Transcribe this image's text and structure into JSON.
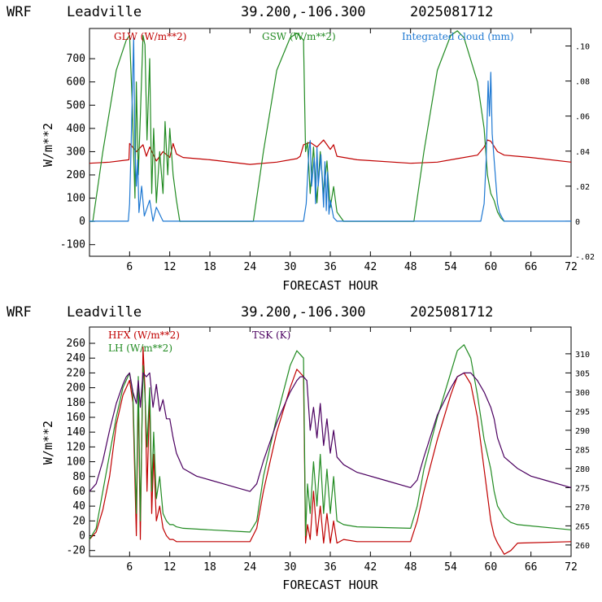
{
  "header": {
    "model": "WRF",
    "location": "Leadville",
    "coords": "39.200,-106.300",
    "init": "2025081712"
  },
  "colors": {
    "red": "#c00000",
    "green": "#228b22",
    "blue": "#1e78d2",
    "purple": "#4b0060"
  },
  "chart_data": [
    {
      "type": "line",
      "xlabel": "FORECAST HOUR",
      "ylabel": "W/m**2",
      "xlim": [
        0,
        72
      ],
      "ylim": [
        -150,
        830
      ],
      "y2lim": [
        -0.02,
        0.11
      ],
      "xticks": [
        "6",
        "12",
        "18",
        "24",
        "30",
        "36",
        "42",
        "48",
        "54",
        "60",
        "66",
        "72"
      ],
      "yticks": [
        "-100",
        "0",
        "100",
        "200",
        "300",
        "400",
        "500",
        "600",
        "700"
      ],
      "y2ticks": [
        "-.02",
        "0",
        ".02",
        ".04",
        ".06",
        ".08",
        ".10"
      ],
      "series": [
        {
          "name": "GLW (W/m**2)",
          "color": "red",
          "axis": "left",
          "x": [
            0,
            3,
            5.9,
            6,
            7,
            8,
            8.5,
            9,
            10,
            11,
            12,
            12.5,
            13,
            14,
            18,
            24,
            28,
            31,
            31.5,
            32,
            33,
            34,
            35,
            36,
            36.5,
            37,
            40,
            48,
            52,
            55,
            58,
            59,
            59.5,
            60,
            61,
            62,
            66,
            72
          ],
          "y": [
            250,
            255,
            265,
            335,
            300,
            330,
            280,
            320,
            260,
            300,
            275,
            335,
            290,
            275,
            265,
            245,
            255,
            270,
            280,
            330,
            340,
            320,
            350,
            310,
            330,
            280,
            265,
            250,
            255,
            270,
            285,
            320,
            350,
            345,
            300,
            285,
            275,
            255
          ]
        },
        {
          "name": "GSW (W/m**2)",
          "color": "green",
          "axis": "left",
          "x": [
            0,
            0.5,
            2,
            4,
            5.5,
            6,
            6.4,
            6.8,
            7,
            7.3,
            7.6,
            8,
            8.3,
            8.6,
            9,
            9.3,
            9.6,
            10,
            10.5,
            11,
            11.3,
            11.7,
            12,
            12.5,
            13,
            13.5,
            24.5,
            26,
            28,
            30,
            31,
            32,
            32.3,
            32.6,
            33,
            33.5,
            34,
            34.5,
            35,
            35.5,
            36,
            36.5,
            37,
            37.5,
            38,
            48.5,
            50,
            52,
            54,
            55,
            56,
            58,
            59,
            59.5,
            60,
            60.5,
            61,
            61.5,
            62
          ],
          "y": [
            0,
            0,
            300,
            650,
            780,
            800,
            500,
            100,
            600,
            200,
            450,
            800,
            760,
            350,
            700,
            120,
            400,
            80,
            300,
            120,
            430,
            200,
            400,
            200,
            90,
            0,
            0,
            300,
            650,
            790,
            810,
            780,
            300,
            340,
            120,
            320,
            80,
            300,
            120,
            260,
            60,
            150,
            40,
            20,
            0,
            0,
            300,
            650,
            800,
            820,
            790,
            600,
            400,
            200,
            120,
            90,
            40,
            15,
            0
          ]
        },
        {
          "name": "Integrated cloud (mm)",
          "color": "blue",
          "axis": "right",
          "x": [
            0,
            5.8,
            6,
            6.2,
            6.6,
            6.8,
            7,
            7.2,
            7.4,
            7.8,
            8.2,
            9,
            9.5,
            10,
            11,
            12,
            32,
            32.4,
            32.8,
            33,
            33.2,
            33.6,
            33.8,
            34,
            34.2,
            34.6,
            35,
            35.2,
            35.4,
            35.6,
            35.8,
            36,
            36.5,
            37,
            58.5,
            59,
            59.3,
            59.6,
            59.8,
            60,
            60.2,
            60.5,
            60.8,
            61,
            61.3,
            61.7,
            62,
            72
          ],
          "y": [
            0,
            0,
            0.01,
            0.04,
            0.105,
            0.04,
            0.02,
            0.035,
            0.005,
            0.02,
            0.003,
            0.012,
            0,
            0.008,
            0,
            0,
            0,
            0.01,
            0.04,
            0.046,
            0.02,
            0.036,
            0.01,
            0.042,
            0.02,
            0.038,
            0.008,
            0.034,
            0.006,
            0.028,
            0.004,
            0.012,
            0.002,
            0,
            0,
            0.01,
            0.035,
            0.08,
            0.06,
            0.085,
            0.05,
            0.035,
            0.02,
            0.01,
            0.005,
            0.002,
            0,
            0
          ]
        }
      ]
    },
    {
      "type": "line",
      "xlabel": "FORECAST HOUR",
      "ylabel": "W/m**2",
      "xlim": [
        0,
        72
      ],
      "ylim": [
        -28,
        282
      ],
      "y2lim": [
        257,
        317
      ],
      "xticks": [
        "6",
        "12",
        "18",
        "24",
        "30",
        "36",
        "42",
        "48",
        "54",
        "60",
        "66",
        "72"
      ],
      "yticks": [
        "-20",
        "0",
        "20",
        "40",
        "60",
        "80",
        "100",
        "120",
        "140",
        "160",
        "180",
        "200",
        "220",
        "240",
        "260"
      ],
      "y2ticks": [
        "260",
        "265",
        "270",
        "275",
        "280",
        "285",
        "290",
        "295",
        "300",
        "305",
        "310"
      ],
      "series": [
        {
          "name": "HFX (W/m**2)",
          "color": "red",
          "axis": "left",
          "x": [
            0,
            1,
            2,
            3,
            4,
            5,
            6,
            6.5,
            7,
            7.3,
            7.6,
            8,
            8.3,
            8.6,
            9,
            9.3,
            9.6,
            10,
            10.5,
            11,
            11.5,
            12,
            12.5,
            13,
            14,
            18,
            24,
            25,
            26,
            28,
            30,
            31,
            31.5,
            32,
            32.3,
            32.6,
            33,
            33.5,
            34,
            34.5,
            35,
            35.5,
            36,
            36.5,
            37,
            38,
            40,
            48,
            49,
            50,
            52,
            54,
            55,
            56,
            57,
            58,
            59,
            60,
            60.5,
            61,
            62,
            63,
            64,
            72
          ],
          "y": [
            -5,
            5,
            35,
            80,
            150,
            190,
            210,
            180,
            0,
            200,
            -5,
            255,
            200,
            60,
            190,
            30,
            110,
            20,
            40,
            10,
            0,
            -5,
            -5,
            -8,
            -8,
            -8,
            -8,
            10,
            60,
            140,
            200,
            225,
            220,
            215,
            -10,
            15,
            -5,
            60,
            0,
            40,
            -10,
            30,
            -10,
            20,
            -10,
            -5,
            -8,
            -8,
            20,
            60,
            130,
            190,
            215,
            220,
            205,
            160,
            90,
            20,
            0,
            -10,
            -25,
            -20,
            -10,
            -8
          ]
        },
        {
          "name": "LH (W/m**2)",
          "color": "green",
          "axis": "left",
          "x": [
            0,
            1,
            2,
            3,
            4,
            5,
            6,
            6.5,
            7,
            7.3,
            7.6,
            8,
            8.3,
            8.6,
            9,
            9.3,
            9.6,
            10,
            10.5,
            11,
            11.5,
            12,
            12.5,
            13,
            14,
            18,
            24,
            25,
            26,
            28,
            30,
            31,
            31.5,
            32,
            32.3,
            32.6,
            33,
            33.5,
            34,
            34.5,
            35,
            35.5,
            36,
            36.5,
            37,
            38,
            40,
            48,
            49,
            50,
            52,
            54,
            55,
            56,
            57,
            58,
            59,
            60,
            60.5,
            61,
            62,
            63,
            64,
            72
          ],
          "y": [
            -5,
            10,
            60,
            110,
            160,
            200,
            220,
            190,
            30,
            215,
            20,
            230,
            190,
            120,
            200,
            60,
            140,
            50,
            80,
            30,
            20,
            15,
            15,
            12,
            10,
            8,
            5,
            20,
            80,
            160,
            230,
            250,
            245,
            240,
            0,
            70,
            30,
            100,
            40,
            110,
            30,
            90,
            30,
            80,
            20,
            15,
            12,
            10,
            40,
            90,
            160,
            220,
            250,
            258,
            240,
            190,
            130,
            90,
            60,
            40,
            25,
            18,
            15,
            8
          ]
        },
        {
          "name": "TSK (K)",
          "color": "purple",
          "axis": "right",
          "x": [
            0,
            1,
            2,
            3,
            4,
            5,
            5.5,
            6,
            6.5,
            7,
            7.3,
            7.6,
            8,
            8.5,
            9,
            9.5,
            10,
            10.5,
            11,
            11.5,
            12,
            12.5,
            13,
            14,
            16,
            18,
            20,
            22,
            24,
            25,
            26,
            28,
            30,
            31,
            31.5,
            32,
            32.5,
            33,
            33.5,
            34,
            34.5,
            35,
            35.5,
            36,
            36.5,
            37,
            38,
            40,
            44,
            48,
            49,
            50,
            52,
            54,
            55,
            56,
            57,
            58,
            59,
            60,
            60.5,
            61,
            62,
            64,
            66,
            68,
            72
          ],
          "y": [
            274,
            276,
            282,
            290,
            297,
            302,
            304,
            305,
            300,
            297,
            303,
            296,
            305,
            304,
            305,
            296,
            302,
            295,
            298,
            293,
            293,
            288,
            284,
            280,
            278,
            277,
            276,
            275,
            274,
            276,
            282,
            292,
            300,
            303,
            304,
            304,
            303,
            290,
            296,
            288,
            297,
            286,
            293,
            284,
            290,
            283,
            281,
            279,
            277,
            275,
            277,
            283,
            294,
            301,
            304,
            305,
            305,
            303,
            300,
            296,
            293,
            288,
            283,
            280,
            278,
            277,
            275
          ]
        }
      ]
    }
  ]
}
